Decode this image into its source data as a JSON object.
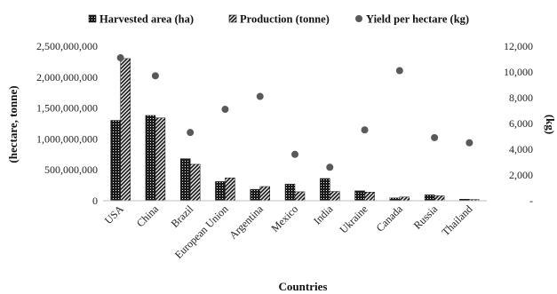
{
  "chart_data": {
    "type": "bar",
    "categories": [
      "USA",
      "China",
      "Brazil",
      "European Union",
      "Argentina",
      "Mexico",
      "India",
      "Ukraine",
      "Canada",
      "Russia",
      "Thailand"
    ],
    "series": [
      {
        "name": "Harvested area (ha)",
        "axis": "left",
        "kind": "bar",
        "pattern": "dots",
        "values": [
          1300000000,
          1380000000,
          680000000,
          310000000,
          185000000,
          270000000,
          360000000,
          160000000,
          45000000,
          95000000,
          25000000
        ]
      },
      {
        "name": "Production (tonne)",
        "axis": "left",
        "kind": "bar",
        "pattern": "hatch",
        "values": [
          2300000000,
          1340000000,
          590000000,
          370000000,
          230000000,
          145000000,
          150000000,
          140000000,
          60000000,
          80000000,
          20000000
        ]
      },
      {
        "name": "Yield per hectare (kg)",
        "axis": "right",
        "kind": "scatter",
        "values": [
          11100,
          9700,
          5300,
          7100,
          8100,
          3600,
          2600,
          5500,
          10100,
          4900,
          4500
        ]
      }
    ],
    "ylim": [
      0,
      2500000000
    ],
    "y_ticks": [
      "0",
      "500,000,000",
      "1,000,000,000",
      "1,500,000,000",
      "2,000,000,000",
      "2,500,000,000"
    ],
    "y2lim": [
      0,
      12000
    ],
    "y2_ticks": [
      "-",
      "2,000",
      "4,000",
      "6,000",
      "8,000",
      "10,000",
      "12,000"
    ],
    "xlabel": "Countries",
    "ylabel": "(hectare, tonne)",
    "y2label": "(kg)",
    "legend_position": "top",
    "grid": false,
    "colors": {
      "bar": "#1a1a1a",
      "scatter": "#595959",
      "axis": "#bfbfbf"
    }
  }
}
